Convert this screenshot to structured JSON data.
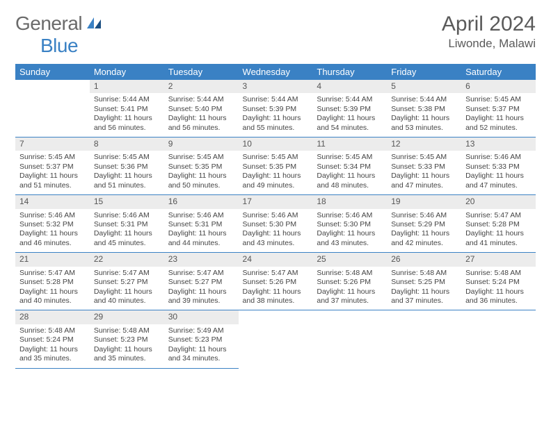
{
  "logo": {
    "general": "General",
    "blue": "Blue"
  },
  "title": "April 2024",
  "location": "Liwonde, Malawi",
  "header_bg": "#3a81c4",
  "header_fg": "#ffffff",
  "daynum_bg": "#ececec",
  "rule_color": "#3a81c4",
  "weekdays": [
    "Sunday",
    "Monday",
    "Tuesday",
    "Wednesday",
    "Thursday",
    "Friday",
    "Saturday"
  ],
  "weeks": [
    [
      null,
      {
        "n": "1",
        "sr": "Sunrise: 5:44 AM",
        "ss": "Sunset: 5:41 PM",
        "d1": "Daylight: 11 hours",
        "d2": "and 56 minutes."
      },
      {
        "n": "2",
        "sr": "Sunrise: 5:44 AM",
        "ss": "Sunset: 5:40 PM",
        "d1": "Daylight: 11 hours",
        "d2": "and 56 minutes."
      },
      {
        "n": "3",
        "sr": "Sunrise: 5:44 AM",
        "ss": "Sunset: 5:39 PM",
        "d1": "Daylight: 11 hours",
        "d2": "and 55 minutes."
      },
      {
        "n": "4",
        "sr": "Sunrise: 5:44 AM",
        "ss": "Sunset: 5:39 PM",
        "d1": "Daylight: 11 hours",
        "d2": "and 54 minutes."
      },
      {
        "n": "5",
        "sr": "Sunrise: 5:44 AM",
        "ss": "Sunset: 5:38 PM",
        "d1": "Daylight: 11 hours",
        "d2": "and 53 minutes."
      },
      {
        "n": "6",
        "sr": "Sunrise: 5:45 AM",
        "ss": "Sunset: 5:37 PM",
        "d1": "Daylight: 11 hours",
        "d2": "and 52 minutes."
      }
    ],
    [
      {
        "n": "7",
        "sr": "Sunrise: 5:45 AM",
        "ss": "Sunset: 5:37 PM",
        "d1": "Daylight: 11 hours",
        "d2": "and 51 minutes."
      },
      {
        "n": "8",
        "sr": "Sunrise: 5:45 AM",
        "ss": "Sunset: 5:36 PM",
        "d1": "Daylight: 11 hours",
        "d2": "and 51 minutes."
      },
      {
        "n": "9",
        "sr": "Sunrise: 5:45 AM",
        "ss": "Sunset: 5:35 PM",
        "d1": "Daylight: 11 hours",
        "d2": "and 50 minutes."
      },
      {
        "n": "10",
        "sr": "Sunrise: 5:45 AM",
        "ss": "Sunset: 5:35 PM",
        "d1": "Daylight: 11 hours",
        "d2": "and 49 minutes."
      },
      {
        "n": "11",
        "sr": "Sunrise: 5:45 AM",
        "ss": "Sunset: 5:34 PM",
        "d1": "Daylight: 11 hours",
        "d2": "and 48 minutes."
      },
      {
        "n": "12",
        "sr": "Sunrise: 5:45 AM",
        "ss": "Sunset: 5:33 PM",
        "d1": "Daylight: 11 hours",
        "d2": "and 47 minutes."
      },
      {
        "n": "13",
        "sr": "Sunrise: 5:46 AM",
        "ss": "Sunset: 5:33 PM",
        "d1": "Daylight: 11 hours",
        "d2": "and 47 minutes."
      }
    ],
    [
      {
        "n": "14",
        "sr": "Sunrise: 5:46 AM",
        "ss": "Sunset: 5:32 PM",
        "d1": "Daylight: 11 hours",
        "d2": "and 46 minutes."
      },
      {
        "n": "15",
        "sr": "Sunrise: 5:46 AM",
        "ss": "Sunset: 5:31 PM",
        "d1": "Daylight: 11 hours",
        "d2": "and 45 minutes."
      },
      {
        "n": "16",
        "sr": "Sunrise: 5:46 AM",
        "ss": "Sunset: 5:31 PM",
        "d1": "Daylight: 11 hours",
        "d2": "and 44 minutes."
      },
      {
        "n": "17",
        "sr": "Sunrise: 5:46 AM",
        "ss": "Sunset: 5:30 PM",
        "d1": "Daylight: 11 hours",
        "d2": "and 43 minutes."
      },
      {
        "n": "18",
        "sr": "Sunrise: 5:46 AM",
        "ss": "Sunset: 5:30 PM",
        "d1": "Daylight: 11 hours",
        "d2": "and 43 minutes."
      },
      {
        "n": "19",
        "sr": "Sunrise: 5:46 AM",
        "ss": "Sunset: 5:29 PM",
        "d1": "Daylight: 11 hours",
        "d2": "and 42 minutes."
      },
      {
        "n": "20",
        "sr": "Sunrise: 5:47 AM",
        "ss": "Sunset: 5:28 PM",
        "d1": "Daylight: 11 hours",
        "d2": "and 41 minutes."
      }
    ],
    [
      {
        "n": "21",
        "sr": "Sunrise: 5:47 AM",
        "ss": "Sunset: 5:28 PM",
        "d1": "Daylight: 11 hours",
        "d2": "and 40 minutes."
      },
      {
        "n": "22",
        "sr": "Sunrise: 5:47 AM",
        "ss": "Sunset: 5:27 PM",
        "d1": "Daylight: 11 hours",
        "d2": "and 40 minutes."
      },
      {
        "n": "23",
        "sr": "Sunrise: 5:47 AM",
        "ss": "Sunset: 5:27 PM",
        "d1": "Daylight: 11 hours",
        "d2": "and 39 minutes."
      },
      {
        "n": "24",
        "sr": "Sunrise: 5:47 AM",
        "ss": "Sunset: 5:26 PM",
        "d1": "Daylight: 11 hours",
        "d2": "and 38 minutes."
      },
      {
        "n": "25",
        "sr": "Sunrise: 5:48 AM",
        "ss": "Sunset: 5:26 PM",
        "d1": "Daylight: 11 hours",
        "d2": "and 37 minutes."
      },
      {
        "n": "26",
        "sr": "Sunrise: 5:48 AM",
        "ss": "Sunset: 5:25 PM",
        "d1": "Daylight: 11 hours",
        "d2": "and 37 minutes."
      },
      {
        "n": "27",
        "sr": "Sunrise: 5:48 AM",
        "ss": "Sunset: 5:24 PM",
        "d1": "Daylight: 11 hours",
        "d2": "and 36 minutes."
      }
    ],
    [
      {
        "n": "28",
        "sr": "Sunrise: 5:48 AM",
        "ss": "Sunset: 5:24 PM",
        "d1": "Daylight: 11 hours",
        "d2": "and 35 minutes."
      },
      {
        "n": "29",
        "sr": "Sunrise: 5:48 AM",
        "ss": "Sunset: 5:23 PM",
        "d1": "Daylight: 11 hours",
        "d2": "and 35 minutes."
      },
      {
        "n": "30",
        "sr": "Sunrise: 5:49 AM",
        "ss": "Sunset: 5:23 PM",
        "d1": "Daylight: 11 hours",
        "d2": "and 34 minutes."
      },
      null,
      null,
      null,
      null
    ]
  ]
}
